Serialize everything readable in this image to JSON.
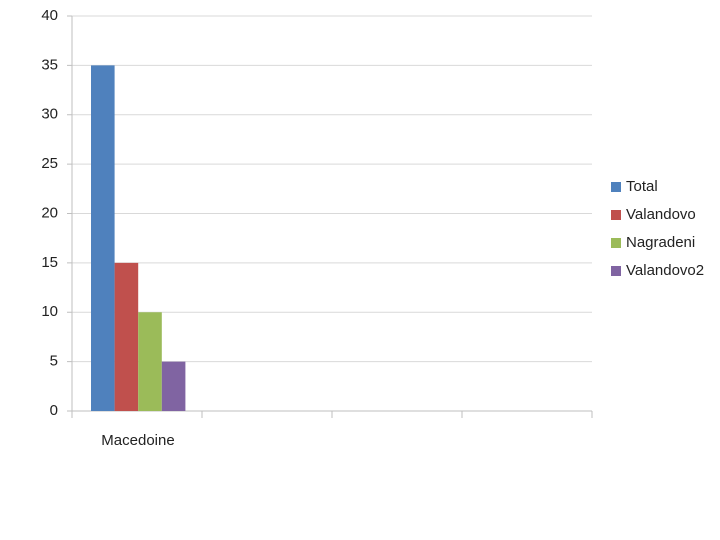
{
  "chart_data": {
    "type": "bar",
    "categories": [
      "Macedoine",
      null,
      null,
      null
    ],
    "series": [
      {
        "name": "Total",
        "color": "#4f81bd",
        "values": [
          35,
          null,
          null,
          null
        ]
      },
      {
        "name": "Valandovo",
        "color": "#c0504d",
        "values": [
          15,
          null,
          null,
          null
        ]
      },
      {
        "name": "Nagradeni",
        "color": "#9bbb59",
        "values": [
          10,
          null,
          null,
          null
        ]
      },
      {
        "name": "Valandovo2",
        "color": "#8064a2",
        "values": [
          5,
          null,
          null,
          null
        ]
      }
    ],
    "ylim": [
      0,
      40
    ],
    "yticks": [
      0,
      5,
      10,
      15,
      20,
      25,
      30,
      35,
      40
    ],
    "grid": true,
    "legend": "right"
  }
}
